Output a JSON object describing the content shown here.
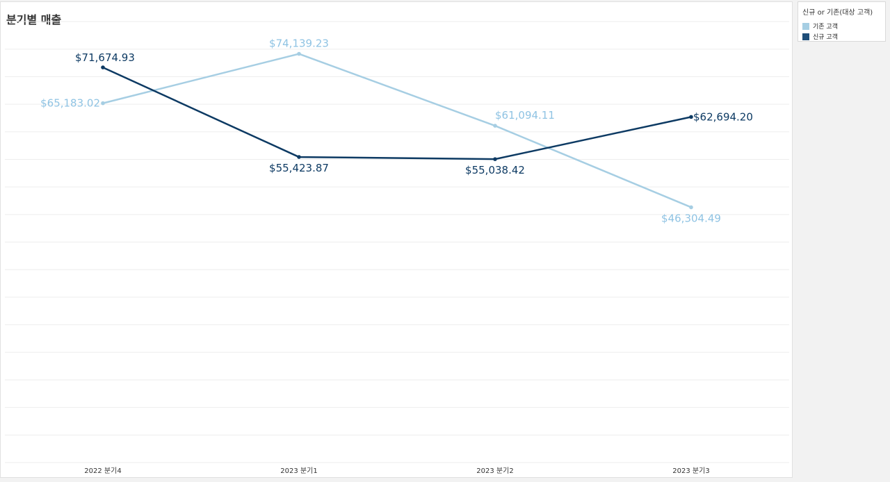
{
  "title": "분기별 매출",
  "legend": {
    "title": "신규 or 기존(대상 고객)",
    "items": [
      {
        "label": "기존 고객",
        "color": "#a6cee3"
      },
      {
        "label": "신규 고객",
        "color": "#1f4e79"
      }
    ]
  },
  "chart_data": {
    "type": "line",
    "title": "분기별 매출",
    "xlabel": "",
    "ylabel": "",
    "categories": [
      "2022 분기4",
      "2023 분기1",
      "2023 분기2",
      "2023 분기3"
    ],
    "ylim": [
      0,
      80000
    ],
    "grid": true,
    "legend_position": "top-right",
    "series": [
      {
        "name": "기존 고객",
        "color": "#a6cee3",
        "label_color": "#8fc3e3",
        "values": [
          65183.02,
          74139.23,
          61094.11,
          46304.49
        ],
        "labels": [
          "$65,183.02",
          "$74,139.23",
          "$61,094.11",
          "$46,304.49"
        ]
      },
      {
        "name": "신규 고객",
        "color": "#0d3a63",
        "label_color": "#0d3a63",
        "values": [
          71674.93,
          55423.87,
          55038.42,
          62694.2
        ],
        "labels": [
          "$71,674.93",
          "$55,423.87",
          "$55,038.42",
          "$62,694.20"
        ]
      }
    ]
  }
}
